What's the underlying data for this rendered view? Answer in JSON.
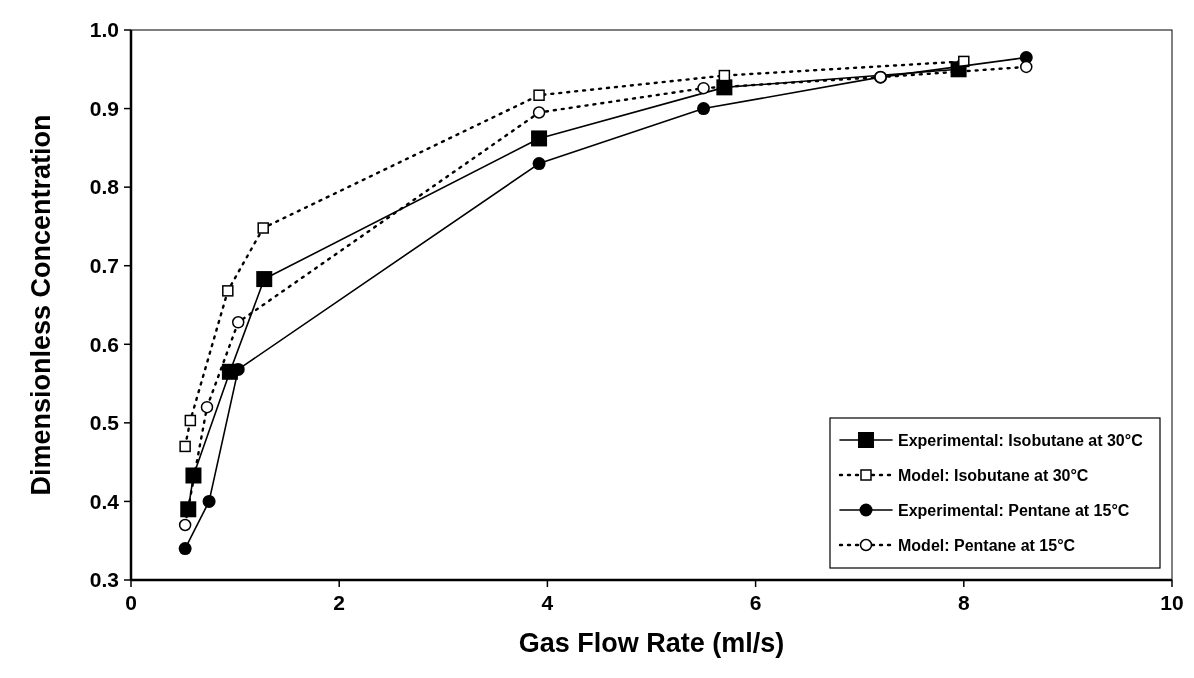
{
  "chart_data": {
    "type": "line",
    "xlabel": "Gas Flow Rate (ml/s)",
    "ylabel": "Dimensionless Concentration",
    "xlim": [
      0,
      10
    ],
    "ylim": [
      0.3,
      1.0
    ],
    "xticks": [
      0,
      2,
      4,
      6,
      8,
      10
    ],
    "yticks": [
      {
        "value": 0.3,
        "label": "0.3"
      },
      {
        "value": 0.4,
        "label": "0.4"
      },
      {
        "value": 0.5,
        "label": "0.5"
      },
      {
        "value": 0.6,
        "label": "0.6"
      },
      {
        "value": 0.7,
        "label": "0.7"
      },
      {
        "value": 0.8,
        "label": "0.8"
      },
      {
        "value": 0.9,
        "label": "0.9"
      },
      {
        "value": 1.0,
        "label": "1.0"
      }
    ],
    "grid": false,
    "legend": "bottom right",
    "series": [
      {
        "name": "Experimental:  Isobutane at 30°C",
        "color": "#000000",
        "marker": "square",
        "line_style": "solid",
        "x": [
          0.55,
          0.6,
          0.95,
          1.28,
          3.92,
          5.7,
          7.95
        ],
        "values": [
          0.39,
          0.433,
          0.565,
          0.683,
          0.862,
          0.927,
          0.95
        ]
      },
      {
        "name": "Model:  Isobutane at 30°C",
        "color": "#000000",
        "marker": "square",
        "line_style": "dotted",
        "x": [
          0.52,
          0.57,
          0.93,
          1.27,
          3.92,
          5.7,
          8.0
        ],
        "values": [
          0.47,
          0.503,
          0.668,
          0.748,
          0.917,
          0.942,
          0.96
        ]
      },
      {
        "name": "Experimental:  Pentane at 15°C",
        "color": "#000000",
        "marker": "circle",
        "line_style": "solid",
        "x": [
          0.52,
          0.75,
          1.03,
          3.92,
          5.5,
          7.2,
          8.6
        ],
        "values": [
          0.34,
          0.4,
          0.568,
          0.83,
          0.9,
          0.94,
          0.965
        ]
      },
      {
        "name": "Model:  Pentane at 15°C",
        "color": "#000000",
        "marker": "circle",
        "line_style": "dotted",
        "x": [
          0.52,
          0.73,
          1.03,
          3.92,
          5.5,
          7.2,
          8.6
        ],
        "values": [
          0.37,
          0.52,
          0.628,
          0.895,
          0.926,
          0.94,
          0.953
        ]
      }
    ]
  }
}
